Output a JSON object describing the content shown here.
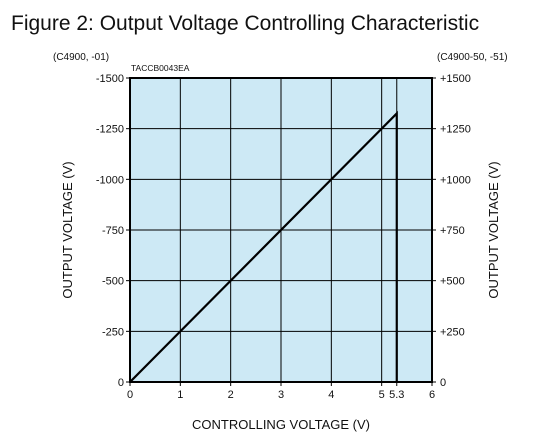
{
  "chart_data": {
    "type": "line",
    "title": "Figure 2: Output Voltage Controlling Characteristic",
    "code_label": "TACCB0043EA",
    "xlabel": "CONTROLLING VOLTAGE (V)",
    "ylabel": "OUTPUT VOLTAGE (V)",
    "ylabel_right": "OUTPUT VOLTAGE (V)",
    "left_model": "(C4900, -01)",
    "right_model": "(C4900-50, -51)",
    "xlim": [
      0,
      6
    ],
    "ylim": [
      0,
      1500
    ],
    "x_ticks": [
      {
        "value": 0,
        "label": "0"
      },
      {
        "value": 1,
        "label": "1"
      },
      {
        "value": 2,
        "label": "2"
      },
      {
        "value": 3,
        "label": "3"
      },
      {
        "value": 4,
        "label": "4"
      },
      {
        "value": 5,
        "label": "5"
      },
      {
        "value": 5.3,
        "label": "5.3"
      },
      {
        "value": 6,
        "label": "6"
      }
    ],
    "y_ticks_left": [
      {
        "value": 0,
        "label": "0"
      },
      {
        "value": 250,
        "label": "-250"
      },
      {
        "value": 500,
        "label": "-500"
      },
      {
        "value": 750,
        "label": "-750"
      },
      {
        "value": 1000,
        "label": "-1000"
      },
      {
        "value": 1250,
        "label": "-1250"
      },
      {
        "value": 1500,
        "label": "-1500"
      }
    ],
    "y_ticks_right": [
      {
        "value": 0,
        "label": "0"
      },
      {
        "value": 250,
        "label": "+250"
      },
      {
        "value": 500,
        "label": "+500"
      },
      {
        "value": 750,
        "label": "+750"
      },
      {
        "value": 1000,
        "label": "+1000"
      },
      {
        "value": 1250,
        "label": "+1250"
      },
      {
        "value": 1500,
        "label": "+1500"
      }
    ],
    "grid": true,
    "series": [
      {
        "x": [
          0,
          5.3,
          5.3
        ],
        "y": [
          0,
          1325,
          0
        ]
      }
    ],
    "colors": {
      "plot_background": "#cde9f5",
      "line": "#000000",
      "grid": "#000000"
    }
  }
}
